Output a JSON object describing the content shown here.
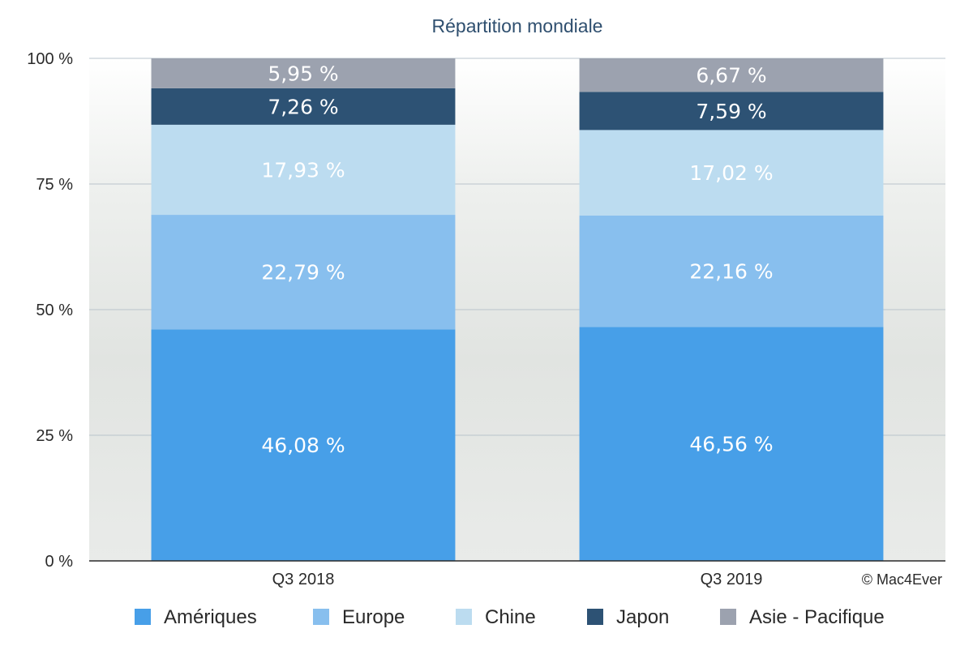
{
  "chart_data": {
    "type": "bar",
    "stacked": true,
    "title": "Répartition mondiale",
    "categories": [
      "Q3 2018",
      "Q3 2019"
    ],
    "series": [
      {
        "name": "Amériques",
        "values": [
          46.08,
          46.56
        ],
        "labels": [
          "46,08 %",
          "46,56 %"
        ],
        "color": "#479fe8"
      },
      {
        "name": "Europe",
        "values": [
          22.79,
          22.16
        ],
        "labels": [
          "22,79 %",
          "22,16 %"
        ],
        "color": "#88bfee"
      },
      {
        "name": "Chine",
        "values": [
          17.93,
          17.02
        ],
        "labels": [
          "17,93 %",
          "17,02 %"
        ],
        "color": "#bcdcf0"
      },
      {
        "name": "Japon",
        "values": [
          7.26,
          7.59
        ],
        "labels": [
          "7,26 %",
          "7,59 %"
        ],
        "color": "#2d5274"
      },
      {
        "name": "Asie - Pacifique",
        "values": [
          5.95,
          6.67
        ],
        "labels": [
          "5,95 %",
          "6,67 %"
        ],
        "color": "#9ca2af"
      }
    ],
    "ylim": [
      0,
      100
    ],
    "yticks": [
      0,
      25,
      50,
      75,
      100
    ],
    "ytick_labels": [
      "0 %",
      "25 %",
      "50 %",
      "75 %",
      "100 %"
    ],
    "grid": true,
    "legend": "bottom"
  },
  "credit": "© Mac4Ever"
}
